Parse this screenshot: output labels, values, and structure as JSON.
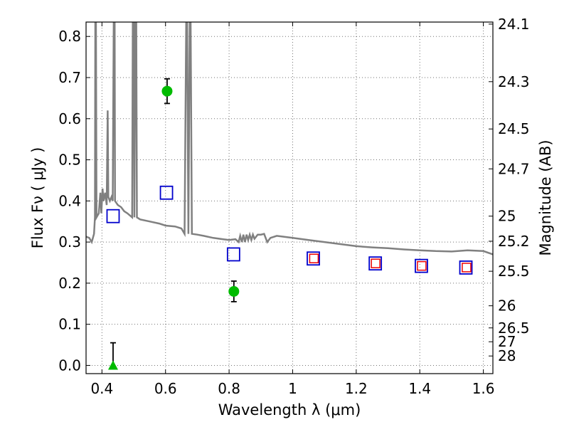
{
  "chart_data": {
    "type": "scatter",
    "xlabel": "Wavelength  λ (μm)",
    "ylabel": "Flux  Fν  ( μJy )",
    "y2label": "Magnitude (AB)",
    "xlim": [
      0.35,
      1.63
    ],
    "ylim": [
      -0.02,
      0.835
    ],
    "grid": true,
    "x_ticks": [
      "0.4",
      "0.6",
      "0.8",
      "1",
      "1.2",
      "1.4",
      "1.6"
    ],
    "y_ticks": [
      "0.0",
      "0.1",
      "0.2",
      "0.3",
      "0.4",
      "0.5",
      "0.6",
      "0.7",
      "0.8"
    ],
    "mag_ticks": [
      {
        "label": "24.1",
        "flux": 0.83
      },
      {
        "label": "24.3",
        "flux": 0.69
      },
      {
        "label": "24.5",
        "flux": 0.575
      },
      {
        "label": "24.7",
        "flux": 0.478
      },
      {
        "label": "25",
        "flux": 0.363
      },
      {
        "label": "25.2",
        "flux": 0.302
      },
      {
        "label": "25.5",
        "flux": 0.229
      },
      {
        "label": "26",
        "flux": 0.145
      },
      {
        "label": "26.5",
        "flux": 0.0912
      },
      {
        "label": "27",
        "flux": 0.0575
      },
      {
        "label": "28",
        "flux": 0.0229
      }
    ],
    "colors": {
      "model": "#808080",
      "observed": "#00bb00",
      "model_phot": "#0000cc",
      "red_box": "#ee0000",
      "errorbar": "#000000"
    },
    "observed": [
      {
        "x": 0.605,
        "y": 0.667,
        "err": 0.03,
        "marker": "circle"
      },
      {
        "x": 0.815,
        "y": 0.18,
        "err": 0.025,
        "marker": "circle"
      },
      {
        "x": 0.435,
        "y": 0.0,
        "err_high": 0.055,
        "marker": "triangle"
      }
    ],
    "model_phot": [
      {
        "x": 0.435,
        "y": 0.363
      },
      {
        "x": 0.603,
        "y": 0.42
      },
      {
        "x": 0.814,
        "y": 0.27
      },
      {
        "x": 1.065,
        "y": 0.26
      },
      {
        "x": 1.26,
        "y": 0.248
      },
      {
        "x": 1.405,
        "y": 0.242
      },
      {
        "x": 1.545,
        "y": 0.238
      }
    ],
    "model_phot_red": [
      {
        "x": 1.067,
        "y": 0.26
      },
      {
        "x": 1.261,
        "y": 0.248
      },
      {
        "x": 1.406,
        "y": 0.242
      },
      {
        "x": 1.547,
        "y": 0.238
      }
    ],
    "model_spectrum": [
      [
        0.35,
        0.313
      ],
      [
        0.36,
        0.31
      ],
      [
        0.368,
        0.3
      ],
      [
        0.375,
        0.32
      ],
      [
        0.378,
        0.36
      ],
      [
        0.379,
        0.835
      ],
      [
        0.381,
        0.835
      ],
      [
        0.383,
        0.36
      ],
      [
        0.39,
        0.37
      ],
      [
        0.395,
        0.42
      ],
      [
        0.398,
        0.37
      ],
      [
        0.402,
        0.43
      ],
      [
        0.405,
        0.4
      ],
      [
        0.41,
        0.42
      ],
      [
        0.415,
        0.39
      ],
      [
        0.418,
        0.62
      ],
      [
        0.42,
        0.41
      ],
      [
        0.425,
        0.4
      ],
      [
        0.43,
        0.41
      ],
      [
        0.434,
        0.4
      ],
      [
        0.437,
        0.835
      ],
      [
        0.44,
        0.835
      ],
      [
        0.441,
        0.4
      ],
      [
        0.45,
        0.39
      ],
      [
        0.46,
        0.385
      ],
      [
        0.47,
        0.375
      ],
      [
        0.48,
        0.37
      ],
      [
        0.495,
        0.36
      ],
      [
        0.497,
        0.835
      ],
      [
        0.5,
        0.835
      ],
      [
        0.502,
        0.36
      ],
      [
        0.505,
        0.835
      ],
      [
        0.508,
        0.835
      ],
      [
        0.51,
        0.36
      ],
      [
        0.52,
        0.355
      ],
      [
        0.55,
        0.35
      ],
      [
        0.58,
        0.345
      ],
      [
        0.6,
        0.34
      ],
      [
        0.63,
        0.338
      ],
      [
        0.65,
        0.333
      ],
      [
        0.66,
        0.32
      ],
      [
        0.665,
        0.835
      ],
      [
        0.668,
        0.835
      ],
      [
        0.672,
        0.32
      ],
      [
        0.676,
        0.835
      ],
      [
        0.679,
        0.835
      ],
      [
        0.683,
        0.32
      ],
      [
        0.7,
        0.318
      ],
      [
        0.72,
        0.315
      ],
      [
        0.75,
        0.31
      ],
      [
        0.78,
        0.307
      ],
      [
        0.8,
        0.305
      ],
      [
        0.82,
        0.307
      ],
      [
        0.83,
        0.3
      ],
      [
        0.835,
        0.315
      ],
      [
        0.84,
        0.3
      ],
      [
        0.845,
        0.318
      ],
      [
        0.85,
        0.3
      ],
      [
        0.855,
        0.318
      ],
      [
        0.86,
        0.305
      ],
      [
        0.865,
        0.318
      ],
      [
        0.87,
        0.305
      ],
      [
        0.875,
        0.318
      ],
      [
        0.88,
        0.308
      ],
      [
        0.89,
        0.318
      ],
      [
        0.9,
        0.318
      ],
      [
        0.91,
        0.32
      ],
      [
        0.92,
        0.3
      ],
      [
        0.93,
        0.31
      ],
      [
        0.95,
        0.315
      ],
      [
        1.0,
        0.31
      ],
      [
        1.05,
        0.305
      ],
      [
        1.1,
        0.3
      ],
      [
        1.15,
        0.295
      ],
      [
        1.2,
        0.29
      ],
      [
        1.25,
        0.287
      ],
      [
        1.3,
        0.285
      ],
      [
        1.35,
        0.282
      ],
      [
        1.4,
        0.28
      ],
      [
        1.45,
        0.278
      ],
      [
        1.5,
        0.277
      ],
      [
        1.55,
        0.28
      ],
      [
        1.6,
        0.278
      ],
      [
        1.63,
        0.27
      ]
    ]
  }
}
